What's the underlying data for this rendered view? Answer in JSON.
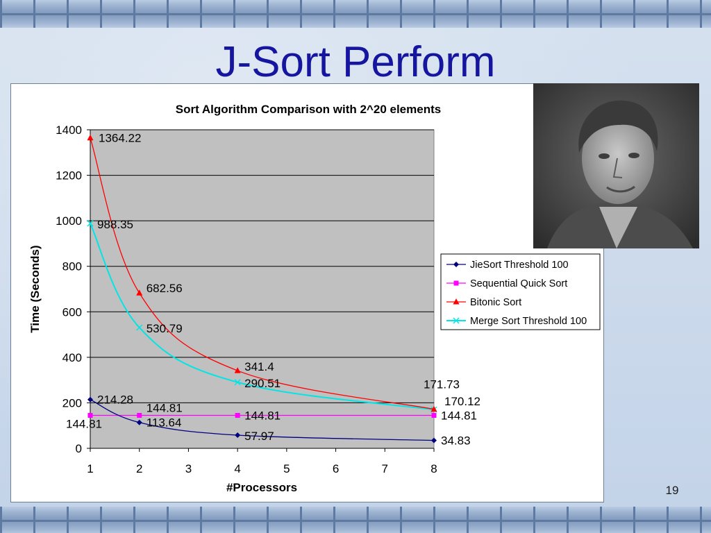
{
  "slide": {
    "title": "J-Sort Perform",
    "page_number": "19"
  },
  "photo": {
    "description_icon": "person-photo"
  },
  "chart_data": {
    "type": "line",
    "title": "Sort Algorithm Comparison with 2^20 elements",
    "xlabel": "#Processors",
    "ylabel": "Time (Seconds)",
    "xlim": [
      1,
      8
    ],
    "ylim": [
      0,
      1400
    ],
    "xticks": [
      1,
      2,
      3,
      4,
      5,
      6,
      7,
      8
    ],
    "yticks": [
      0,
      200,
      400,
      600,
      800,
      1000,
      1200,
      1400
    ],
    "grid": true,
    "plot_background": "#c0c0c0",
    "legend_position": "right",
    "series": [
      {
        "name": "JieSort Threshold 100",
        "color": "#000080",
        "marker": "diamond",
        "x": [
          1,
          2,
          4,
          8
        ],
        "y": [
          214.28,
          113.64,
          57.97,
          34.83
        ],
        "labels": [
          "214.28",
          "113.64",
          "57.97",
          "34.83"
        ]
      },
      {
        "name": "Sequential Quick Sort",
        "color": "#ff00ff",
        "marker": "square",
        "x": [
          1,
          2,
          4,
          8
        ],
        "y": [
          144.81,
          144.81,
          144.81,
          144.81
        ],
        "labels": [
          "144.81",
          "144.81",
          "144.81",
          "144.81"
        ]
      },
      {
        "name": "Bitonic Sort",
        "color": "#ff0000",
        "marker": "triangle",
        "x": [
          1,
          2,
          4,
          8
        ],
        "y": [
          1364.22,
          682.56,
          341.4,
          171.73
        ],
        "labels": [
          "1364.22",
          "682.56",
          "341.4",
          "171.73"
        ]
      },
      {
        "name": "Merge Sort Threshold 100",
        "color": "#00e5e5",
        "marker": "x",
        "x": [
          1,
          2,
          4,
          8
        ],
        "y": [
          988.35,
          530.79,
          290.51,
          170.12
        ],
        "labels": [
          "988.35",
          "530.79",
          "290.51",
          "170.12"
        ]
      }
    ]
  }
}
